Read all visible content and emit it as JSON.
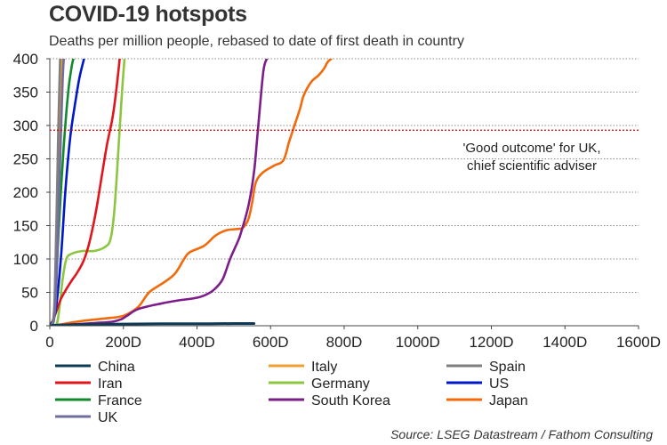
{
  "title": "COVID-19 hotspots",
  "subtitle": "Deaths per million people, rebased to date of first death in country",
  "source": "Source: LSEG Datastream / Fathom Consulting",
  "chart_data": {
    "type": "line",
    "title": "COVID-19 hotspots",
    "subtitle": "Deaths per million people, rebased to date of first death in country",
    "xlabel": "",
    "ylabel": "",
    "xlim": [
      0,
      1600
    ],
    "ylim": [
      0,
      400
    ],
    "x_ticks": [
      0,
      200,
      400,
      600,
      800,
      1000,
      1200,
      1400,
      1600
    ],
    "x_tick_labels": [
      "0",
      "200D",
      "400D",
      "600D",
      "800D",
      "1000D",
      "1200D",
      "1400D",
      "1600D"
    ],
    "y_ticks": [
      0,
      50,
      100,
      150,
      200,
      250,
      300,
      350,
      400
    ],
    "y_tick_labels": [
      "0",
      "50",
      "100",
      "150",
      "200",
      "250",
      "300",
      "350",
      "400"
    ],
    "grid": "horizontal dotted",
    "reference_line": {
      "y": 293,
      "label_lines": [
        "'Good outcome' for UK,",
        "chief scientific adviser"
      ],
      "color": "#cc0000"
    },
    "series": [
      {
        "name": "China",
        "color": "#0d3b57",
        "x": [
          0,
          20,
          100,
          200,
          300,
          400,
          500,
          555
        ],
        "y": [
          0,
          1,
          2,
          2.5,
          3,
          3,
          3.3,
          3.3
        ]
      },
      {
        "name": "Italy",
        "color": "#f0a030",
        "x": [
          0,
          8,
          14,
          18,
          22,
          25,
          28,
          31,
          33
        ],
        "y": [
          0,
          5,
          40,
          100,
          170,
          240,
          300,
          360,
          400
        ]
      },
      {
        "name": "Spain",
        "color": "#7f7f7f",
        "x": [
          0,
          10,
          14,
          17,
          20,
          23,
          26,
          28
        ],
        "y": [
          0,
          10,
          60,
          130,
          210,
          290,
          360,
          400
        ]
      },
      {
        "name": "Iran",
        "color": "#e0161c",
        "x": [
          0,
          10,
          20,
          30,
          45,
          60,
          75,
          90,
          100,
          110,
          125,
          140,
          155,
          170,
          180,
          190
        ],
        "y": [
          0,
          10,
          25,
          40,
          55,
          68,
          80,
          95,
          110,
          130,
          170,
          220,
          270,
          310,
          350,
          400
        ]
      },
      {
        "name": "Germany",
        "color": "#8cc63f",
        "x": [
          0,
          20,
          35,
          45,
          60,
          90,
          120,
          150,
          165,
          175,
          185,
          195,
          203
        ],
        "y": [
          0,
          5,
          70,
          100,
          108,
          112,
          112,
          118,
          130,
          170,
          250,
          340,
          400
        ]
      },
      {
        "name": "US",
        "color": "#0018c8",
        "x": [
          0,
          15,
          30,
          42,
          55,
          68,
          80,
          93
        ],
        "y": [
          0,
          20,
          100,
          200,
          280,
          330,
          370,
          400
        ]
      },
      {
        "name": "France",
        "color": "#13892d",
        "x": [
          0,
          8,
          15,
          22,
          30,
          38,
          45,
          52,
          60,
          64
        ],
        "y": [
          0,
          5,
          40,
          120,
          200,
          270,
          320,
          360,
          390,
          400
        ]
      },
      {
        "name": "South Korea",
        "color": "#7d1d8a",
        "x": [
          0,
          60,
          120,
          170,
          195,
          210,
          240,
          300,
          350,
          400,
          430,
          450,
          470,
          490,
          510,
          520,
          540,
          555,
          565,
          580,
          590
        ],
        "y": [
          0,
          2,
          4,
          6,
          10,
          15,
          25,
          33,
          38,
          42,
          48,
          56,
          70,
          100,
          125,
          140,
          180,
          230,
          290,
          380,
          400
        ]
      },
      {
        "name": "Japan",
        "color": "#f26a0a",
        "x": [
          0,
          30,
          60,
          100,
          150,
          200,
          240,
          270,
          310,
          340,
          365,
          380,
          420,
          450,
          480,
          510,
          525,
          540,
          550,
          560,
          580,
          610,
          635,
          650,
          665,
          680,
          690,
          710,
          730,
          745,
          755,
          765
        ],
        "y": [
          0,
          2,
          5,
          8,
          11,
          15,
          28,
          50,
          65,
          78,
          100,
          110,
          120,
          135,
          143,
          145,
          147,
          160,
          185,
          215,
          230,
          240,
          248,
          275,
          300,
          325,
          345,
          365,
          375,
          385,
          395,
          400
        ]
      },
      {
        "name": "UK",
        "color": "#6f6e9f",
        "x": [
          0,
          10,
          15,
          19,
          23,
          27,
          31,
          35,
          38
        ],
        "y": [
          0,
          5,
          30,
          80,
          150,
          230,
          300,
          370,
          400
        ]
      }
    ],
    "legend_order": [
      "China",
      "Italy",
      "Spain",
      "Iran",
      "Germany",
      "US",
      "France",
      "South Korea",
      "Japan",
      "UK"
    ],
    "legend_position": "bottom"
  }
}
